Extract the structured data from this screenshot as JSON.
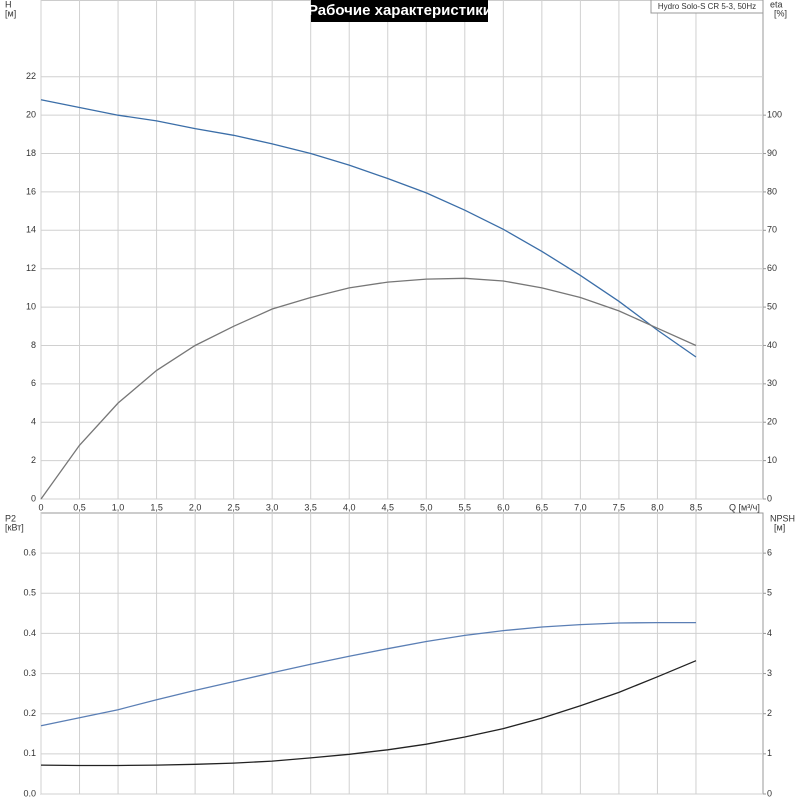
{
  "chart_data": [
    {
      "type": "line",
      "title": "Рабочие характеристики",
      "legend": "Hydro Solo-S CR 5-3, 50Hz",
      "ylabel": "H",
      "yunit": "[м]",
      "y2label": "eta",
      "y2unit": "[%]",
      "xlabel": "Q [м³/ч]",
      "x": [
        0,
        0.5,
        1,
        1.5,
        2,
        2.5,
        3,
        3.5,
        4,
        4.5,
        5,
        5.5,
        6,
        6.5,
        7,
        7.5,
        8,
        8.5
      ],
      "xlim": [
        0,
        9.37
      ],
      "xticks": [
        0,
        {
          "value": 0.5,
          "label": "0,5"
        },
        {
          "value": 1,
          "label": "1,0"
        },
        {
          "value": 1.5,
          "label": "1,5"
        },
        {
          "value": 2,
          "label": "2,0"
        },
        {
          "value": 2.5,
          "label": "2,5"
        },
        {
          "value": 3,
          "label": "3,0"
        },
        {
          "value": 3.5,
          "label": "3,5"
        },
        {
          "value": 4,
          "label": "4,0"
        },
        {
          "value": 4.5,
          "label": "4,5"
        },
        {
          "value": 5,
          "label": "5,0"
        },
        {
          "value": 5.5,
          "label": "5,5"
        },
        {
          "value": 6,
          "label": "6,0"
        },
        {
          "value": 6.5,
          "label": "6,5"
        },
        {
          "value": 7,
          "label": "7,0"
        },
        {
          "value": 7.5,
          "label": "7,5"
        },
        {
          "value": 8,
          "label": "8,0"
        },
        {
          "value": 8.5,
          "label": "8,5"
        }
      ],
      "ylim": [
        0,
        26
      ],
      "yticks": [
        0,
        2,
        4,
        6,
        8,
        10,
        12,
        14,
        16,
        18,
        20,
        22
      ],
      "y2lim": [
        0,
        130
      ],
      "y2ticks": [
        0,
        10,
        20,
        30,
        40,
        50,
        60,
        70,
        80,
        90,
        100
      ],
      "grid": true,
      "series": [
        {
          "name": "H",
          "color": "#3b6ea8",
          "values": [
            20.8,
            20.4,
            20.0,
            19.7,
            19.3,
            18.95,
            18.5,
            18.0,
            17.4,
            16.7,
            15.95,
            15.05,
            14.05,
            12.9,
            11.65,
            10.3,
            8.8,
            7.4
          ]
        },
        {
          "name": "eta",
          "color": "#777777",
          "axis": "y2",
          "values": [
            0,
            14,
            25,
            33.5,
            40,
            45,
            49.5,
            52.5,
            55,
            56.5,
            57.3,
            57.5,
            56.8,
            55,
            52.5,
            49,
            44.5,
            40
          ]
        }
      ]
    },
    {
      "type": "line",
      "ylabel": "P2",
      "yunit": "[кВт]",
      "y2label": "NPSH",
      "y2unit": "[м]",
      "x": [
        0,
        0.5,
        1,
        1.5,
        2,
        2.5,
        3,
        3.5,
        4,
        4.5,
        5,
        5.5,
        6,
        6.5,
        7,
        7.5,
        8,
        8.5
      ],
      "xlim": [
        0,
        9.37
      ],
      "ylim": [
        0,
        0.7
      ],
      "yticks": [
        {
          "value": 0,
          "label": "0.0"
        },
        0.1,
        0.2,
        0.3,
        0.4,
        0.5,
        0.6
      ],
      "y2lim": [
        0,
        7
      ],
      "y2ticks": [
        0,
        1,
        2,
        3,
        4,
        5,
        6
      ],
      "grid": true,
      "series": [
        {
          "name": "P2",
          "color": "#5b7fb5",
          "values": [
            0.17,
            0.19,
            0.21,
            0.235,
            0.258,
            0.28,
            0.302,
            0.323,
            0.343,
            0.362,
            0.38,
            0.395,
            0.407,
            0.416,
            0.422,
            0.426,
            0.427,
            0.427
          ]
        },
        {
          "name": "NPSH",
          "color": "#222222",
          "axis": "y2",
          "values": [
            0.72,
            0.71,
            0.71,
            0.72,
            0.74,
            0.77,
            0.82,
            0.9,
            0.99,
            1.1,
            1.24,
            1.42,
            1.63,
            1.89,
            2.2,
            2.53,
            2.92,
            3.32
          ]
        }
      ]
    }
  ]
}
